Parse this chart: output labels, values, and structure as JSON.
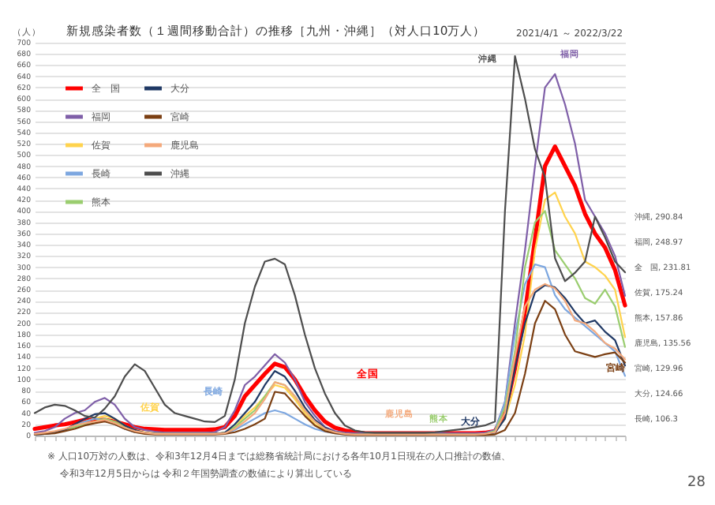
{
  "chart_data": {
    "type": "line",
    "title": "新規感染者数（１週間移動合計）の推移［九州・沖縄］（対人口10万人）",
    "subtitle": "2021/4/1 ～ 2022/3/22",
    "ylabel": "（人）",
    "categories": [
      null,
      null,
      null,
      null,
      null,
      null,
      null,
      null,
      null,
      null,
      null,
      null,
      null,
      null,
      null,
      null,
      null,
      null,
      null,
      null,
      null,
      null,
      null,
      null,
      null,
      null,
      null,
      null,
      null,
      null,
      null,
      null,
      null,
      null,
      null,
      null,
      null,
      null,
      null,
      null,
      null,
      null,
      null,
      null,
      null,
      null,
      null,
      null,
      null,
      null,
      null,
      null,
      null,
      null,
      null,
      null,
      null,
      null,
      null,
      null
    ],
    "ylim": [
      0,
      700
    ],
    "yticks": [
      0,
      20,
      40,
      60,
      80,
      100,
      120,
      140,
      160,
      180,
      200,
      220,
      240,
      260,
      280,
      300,
      320,
      340,
      360,
      380,
      400,
      420,
      440,
      460,
      480,
      500,
      520,
      540,
      560,
      580,
      600,
      620,
      640,
      660,
      680,
      700
    ],
    "grid": "y",
    "legend": "top left",
    "tick_labels": "y",
    "marker": "none",
    "line_style": "solid",
    "series": [
      {
        "name": "全　国",
        "color": "#ff0000",
        "values": [
          12,
          15,
          18,
          20,
          24,
          28,
          28,
          28,
          25,
          20,
          15,
          12,
          11,
          10,
          10,
          10,
          10,
          10,
          11,
          15,
          35,
          70,
          90,
          110,
          128,
          122,
          100,
          70,
          45,
          25,
          14,
          9,
          6,
          4,
          4,
          4,
          4,
          4,
          4,
          4,
          4,
          4,
          4,
          4,
          4,
          5,
          8,
          40,
          120,
          220,
          350,
          480,
          515,
          480,
          445,
          395,
          360,
          335,
          295,
          231.81
        ]
      },
      {
        "name": "福岡",
        "color": "#7f5fa8",
        "values": [
          5,
          8,
          15,
          30,
          40,
          45,
          60,
          67,
          55,
          30,
          15,
          10,
          7,
          5,
          5,
          5,
          5,
          5,
          6,
          15,
          45,
          90,
          105,
          125,
          145,
          130,
          100,
          60,
          35,
          15,
          8,
          5,
          4,
          4,
          4,
          4,
          4,
          4,
          4,
          4,
          4,
          4,
          4,
          4,
          4,
          5,
          10,
          60,
          200,
          330,
          480,
          620,
          644,
          590,
          520,
          420,
          390,
          360,
          320,
          248.97
        ]
      },
      {
        "name": "佐賀",
        "color": "#ffd34d",
        "values": [
          null,
          null,
          null,
          null,
          18,
          25,
          30,
          35,
          30,
          18,
          10,
          6,
          4,
          3,
          3,
          3,
          3,
          3,
          3,
          5,
          15,
          35,
          50,
          70,
          90,
          85,
          65,
          40,
          20,
          10,
          5,
          3,
          2,
          2,
          2,
          2,
          2,
          2,
          2,
          2,
          2,
          2,
          2,
          2,
          2,
          3,
          6,
          30,
          90,
          180,
          330,
          420,
          433,
          390,
          360,
          310,
          300,
          285,
          260,
          175.24
        ]
      },
      {
        "name": "長崎",
        "color": "#7da7e0",
        "values": [
          2,
          3,
          5,
          10,
          18,
          25,
          30,
          28,
          20,
          12,
          6,
          4,
          3,
          3,
          3,
          3,
          3,
          3,
          3,
          4,
          10,
          20,
          30,
          40,
          45,
          40,
          30,
          20,
          12,
          7,
          4,
          2,
          2,
          2,
          2,
          2,
          2,
          2,
          2,
          2,
          2,
          2,
          2,
          2,
          2,
          3,
          8,
          60,
          180,
          270,
          305,
          300,
          250,
          225,
          210,
          195,
          180,
          165,
          150,
          106.3
        ]
      },
      {
        "name": "熊本",
        "color": "#9acd6f",
        "values": [
          null,
          null,
          5,
          10,
          15,
          20,
          25,
          30,
          25,
          15,
          8,
          5,
          3,
          3,
          3,
          3,
          3,
          3,
          3,
          5,
          15,
          30,
          45,
          70,
          95,
          90,
          70,
          45,
          25,
          12,
          6,
          3,
          2,
          2,
          2,
          2,
          2,
          2,
          2,
          2,
          2,
          2,
          2,
          2,
          2,
          3,
          8,
          50,
          150,
          300,
          380,
          400,
          330,
          305,
          280,
          245,
          235,
          260,
          230,
          157.86
        ]
      },
      {
        "name": "大分",
        "color": "#1f3864",
        "values": [
          2,
          3,
          5,
          10,
          20,
          30,
          38,
          40,
          30,
          18,
          10,
          5,
          3,
          3,
          3,
          3,
          3,
          3,
          3,
          5,
          20,
          40,
          60,
          90,
          115,
          105,
          80,
          50,
          28,
          14,
          6,
          3,
          2,
          2,
          2,
          2,
          2,
          2,
          2,
          2,
          2,
          2,
          2,
          2,
          2,
          3,
          5,
          30,
          120,
          200,
          255,
          268,
          264,
          245,
          220,
          200,
          205,
          185,
          170,
          124.66
        ]
      },
      {
        "name": "宮崎",
        "color": "#7b3f13",
        "values": [
          2,
          3,
          4,
          8,
          12,
          18,
          22,
          25,
          20,
          12,
          6,
          3,
          2,
          2,
          2,
          2,
          2,
          2,
          2,
          3,
          6,
          12,
          20,
          30,
          78,
          75,
          55,
          35,
          18,
          8,
          4,
          2,
          1,
          1,
          1,
          1,
          1,
          1,
          1,
          1,
          1,
          1,
          1,
          1,
          1,
          1,
          2,
          10,
          40,
          110,
          200,
          240,
          225,
          180,
          150,
          145,
          140,
          145,
          148,
          129.96
        ]
      },
      {
        "name": "鹿児島",
        "color": "#f4a97b",
        "values": [
          3,
          5,
          8,
          12,
          18,
          22,
          25,
          28,
          22,
          14,
          8,
          5,
          3,
          3,
          3,
          3,
          3,
          3,
          3,
          4,
          12,
          25,
          40,
          65,
          95,
          90,
          70,
          45,
          25,
          12,
          6,
          3,
          2,
          2,
          2,
          2,
          2,
          2,
          2,
          2,
          2,
          2,
          2,
          2,
          2,
          3,
          6,
          40,
          140,
          230,
          260,
          270,
          262,
          240,
          205,
          200,
          185,
          165,
          155,
          135.56
        ]
      },
      {
        "name": "沖縄",
        "color": "#4d4d4d",
        "values": [
          40,
          50,
          55,
          53,
          45,
          35,
          32,
          48,
          70,
          105,
          127,
          115,
          85,
          55,
          40,
          35,
          30,
          25,
          24,
          35,
          100,
          200,
          265,
          310,
          315,
          305,
          250,
          180,
          120,
          75,
          40,
          18,
          9,
          6,
          5,
          5,
          5,
          5,
          5,
          5,
          6,
          8,
          10,
          12,
          15,
          18,
          25,
          400,
          676,
          600,
          510,
          460,
          316,
          275,
          290,
          310,
          390,
          353,
          310,
          290.84
        ]
      }
    ],
    "annotations": [
      "沖縄",
      "福岡",
      "長崎",
      "佐賀",
      "全国",
      "鹿児島",
      "熊本",
      "大分",
      "宮崎",
      "沖縄, 290.84",
      "福岡, 248.97",
      "全　国, 231.81",
      "佐賀, 175.24",
      "熊本, 157.86",
      "鹿児島, 135.56",
      "宮崎, 129.96",
      "大分, 124.66",
      "長崎, 106.3",
      "※ 人口10万対の人数は、令和3年12月4日までは総務省統計局における各年10月1日現在の人口推計の数値、",
      "令和3年12月5日からは 令和２年国勢調査の数値により算出している",
      "28"
    ]
  }
}
